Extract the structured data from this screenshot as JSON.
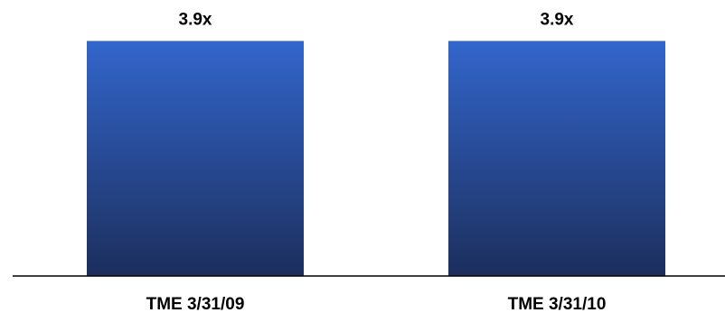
{
  "chart_data": {
    "type": "bar",
    "categories": [
      "TME 3/31/09",
      "TME 3/31/10"
    ],
    "values": [
      3.9,
      3.9
    ],
    "data_labels": [
      "3.9x",
      "3.9x"
    ],
    "title": "",
    "xlabel": "",
    "ylabel": "",
    "ylim": [
      0,
      4.4
    ],
    "grid": false,
    "legend": "none",
    "bar_gradient": {
      "top": "#3366CC",
      "bottom": "#1C2E5C"
    },
    "axis_color": "#000000"
  }
}
